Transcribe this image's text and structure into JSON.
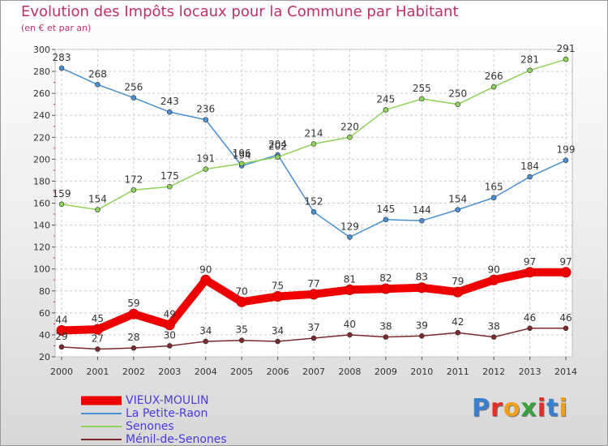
{
  "title": "Evolution des Impôts locaux pour la Commune par Habitant",
  "subtitle": "(en € et par an)",
  "logo_text": "Proxiti",
  "chart_data": {
    "type": "line",
    "title": "Evolution des Impôts locaux pour la Commune par Habitant",
    "subtitle": "(en € et par an)",
    "xlabel": "",
    "ylabel": "",
    "x": [
      "2000",
      "2001",
      "2002",
      "2003",
      "2004",
      "2005",
      "2006",
      "2007",
      "2008",
      "2009",
      "2010",
      "2011",
      "2012",
      "2013",
      "2014"
    ],
    "ylim": [
      20,
      300
    ],
    "yticks": [
      20,
      40,
      60,
      80,
      100,
      120,
      140,
      160,
      180,
      200,
      220,
      240,
      260,
      280,
      300
    ],
    "grid": true,
    "series": [
      {
        "name": "VIEUX-MOULIN",
        "color": "#ee0000",
        "values": [
          44,
          45,
          59,
          49,
          90,
          70,
          75,
          77,
          81,
          82,
          83,
          79,
          90,
          97,
          97
        ]
      },
      {
        "name": "La Petite-Raon",
        "color": "#4a8fd0",
        "values": [
          283,
          268,
          256,
          243,
          236,
          194,
          204,
          152,
          129,
          145,
          144,
          154,
          165,
          184,
          199
        ]
      },
      {
        "name": "Senones",
        "color": "#8dd25a",
        "values": [
          159,
          154,
          172,
          175,
          191,
          196,
          202,
          214,
          220,
          245,
          255,
          250,
          266,
          281,
          291
        ]
      },
      {
        "name": "Ménil-de-Senones",
        "color": "#7a2a2a",
        "values": [
          29,
          27,
          28,
          30,
          34,
          35,
          34,
          37,
          40,
          38,
          39,
          42,
          38,
          46,
          46
        ]
      }
    ]
  }
}
